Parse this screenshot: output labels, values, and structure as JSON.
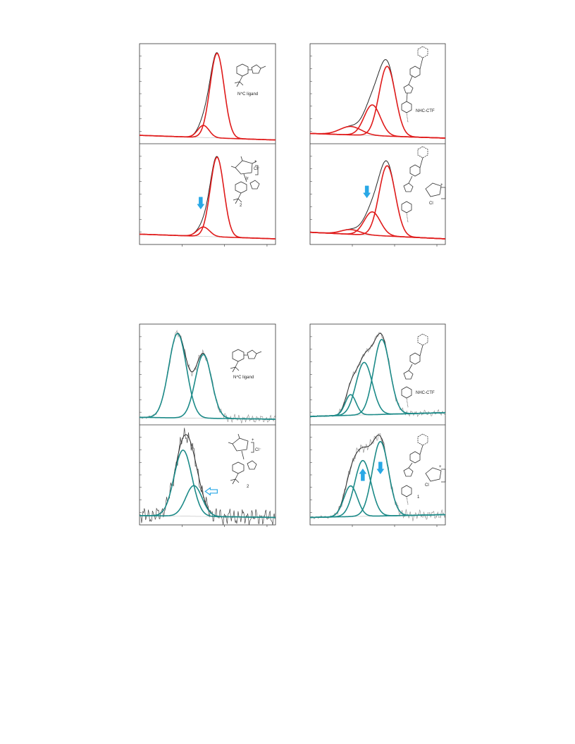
{
  "colors": {
    "envelope": "#2b2b2b",
    "raw": "#9a9a9a",
    "red_fit": "#e01b1b",
    "teal_fit": "#1c8a88",
    "arrow": "#29a8e6"
  },
  "labels": {
    "nc_ligand_top": "N^C ligand",
    "nhc_ctf_top": "NHC-CTF",
    "complex_2_top": "2",
    "nc_ligand_bottom": "N^C ligand",
    "nhc_ctf_bottom": "NHC-CTF",
    "complex_2_bottom": "2",
    "complex_1_bottom": "1",
    "cl_minus": "Cl⁻",
    "cl": "Cl",
    "ir": "Ir",
    "plus": "+"
  },
  "chart_data": [
    {
      "type": "line",
      "figure": "top-left",
      "fit_color": "red_fit",
      "xlim": [
        0,
        100
      ],
      "ylim": [
        0,
        100
      ],
      "panels": [
        {
          "position": "upper",
          "baseline": [
            6,
            1
          ],
          "peaks": [
            {
              "center": 57,
              "height": 91,
              "width": 5.2
            },
            {
              "center": 47,
              "height": 13,
              "width": 4.2
            }
          ],
          "noise": 0
        },
        {
          "position": "lower",
          "baseline": [
            8,
            3
          ],
          "peaks": [
            {
              "center": 57,
              "height": 85,
              "width": 5.0
            },
            {
              "center": 47,
              "height": 10,
              "width": 4.5
            }
          ],
          "noise": 0,
          "arrows": [
            {
              "x": 45,
              "y": 40,
              "dir": "down",
              "style": "solid"
            }
          ]
        }
      ]
    },
    {
      "type": "line",
      "figure": "top-right",
      "fit_color": "red_fit",
      "xlim": [
        0,
        100
      ],
      "ylim": [
        0,
        100
      ],
      "panels": [
        {
          "position": "upper",
          "baseline": [
            8,
            3
          ],
          "peaks": [
            {
              "center": 57,
              "height": 75,
              "width": 6.0
            },
            {
              "center": 46,
              "height": 33,
              "width": 6.0
            },
            {
              "center": 30,
              "height": 9,
              "width": 8.0
            }
          ],
          "noise": 0
        },
        {
          "position": "lower",
          "baseline": [
            10,
            3
          ],
          "peaks": [
            {
              "center": 57,
              "height": 75,
              "width": 6.0
            },
            {
              "center": 46,
              "height": 25,
              "width": 6.0
            },
            {
              "center": 30,
              "height": 5,
              "width": 7.0
            }
          ],
          "noise": 0,
          "arrows": [
            {
              "x": 42,
              "y": 52,
              "dir": "down",
              "style": "solid"
            }
          ]
        }
      ]
    },
    {
      "type": "line",
      "figure": "bottom-left",
      "fit_color": "teal_fit",
      "xlim": [
        0,
        100
      ],
      "ylim": [
        0,
        100
      ],
      "panels": [
        {
          "position": "upper",
          "baseline": [
            5,
            3
          ],
          "peaks": [
            {
              "center": 28,
              "height": 90,
              "width": 6.5
            },
            {
              "center": 47,
              "height": 68,
              "width": 6.0
            }
          ],
          "noise": 4
        },
        {
          "position": "lower",
          "baseline": [
            7,
            5
          ],
          "peaks": [
            {
              "center": 32,
              "height": 71,
              "width": 6.5
            },
            {
              "center": 40,
              "height": 33,
              "width": 6.0
            }
          ],
          "noise": 8,
          "arrows": [
            {
              "x": 52,
              "y": 33,
              "dir": "left",
              "style": "outline"
            }
          ]
        }
      ]
    },
    {
      "type": "line",
      "figure": "bottom-right",
      "fit_color": "teal_fit",
      "xlim": [
        0,
        100
      ],
      "ylim": [
        0,
        100
      ],
      "panels": [
        {
          "position": "upper",
          "baseline": [
            6,
            10
          ],
          "peaks": [
            {
              "center": 53,
              "height": 80,
              "width": 6.0
            },
            {
              "center": 40,
              "height": 56,
              "width": 6.0
            },
            {
              "center": 30,
              "height": 22,
              "width": 4.0
            }
          ],
          "noise": 3
        },
        {
          "position": "lower",
          "baseline": [
            5,
            8
          ],
          "peaks": [
            {
              "center": 52,
              "height": 80,
              "width": 6.0
            },
            {
              "center": 39,
              "height": 60,
              "width": 6.0
            },
            {
              "center": 30,
              "height": 33,
              "width": 5.0
            }
          ],
          "noise": 5,
          "arrows": [
            {
              "x": 39,
              "y": 52,
              "dir": "up",
              "style": "solid"
            },
            {
              "x": 52,
              "y": 57,
              "dir": "down",
              "style": "solid"
            }
          ]
        }
      ]
    }
  ]
}
